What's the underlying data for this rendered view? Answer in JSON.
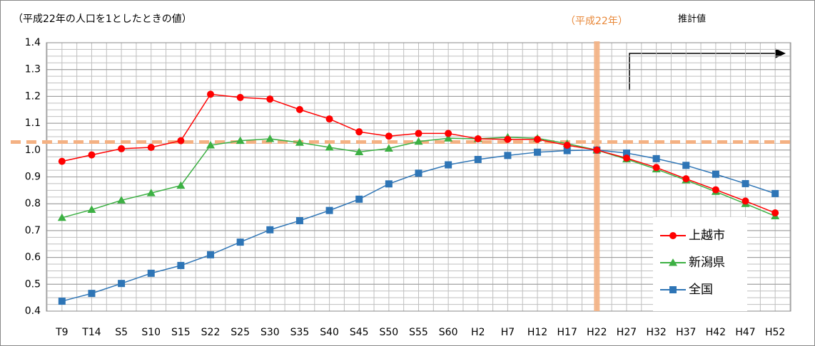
{
  "chart_data": {
    "type": "line",
    "title": "（平成22年の人口を1としたときの値）",
    "annotations": {
      "base_year": "（平成22年）",
      "projection": "推計値"
    },
    "categories": [
      "T9",
      "T14",
      "S5",
      "S10",
      "S15",
      "S22",
      "S25",
      "S30",
      "S35",
      "S40",
      "S45",
      "S50",
      "S55",
      "S60",
      "H2",
      "H7",
      "H12",
      "H17",
      "H22",
      "H27",
      "H32",
      "H37",
      "H42",
      "H47",
      "H52"
    ],
    "series": [
      {
        "name": "上越市",
        "color": "#ff0000",
        "marker": "circle",
        "values": [
          0.958,
          0.982,
          1.005,
          1.01,
          1.035,
          1.208,
          1.196,
          1.19,
          1.151,
          1.116,
          1.068,
          1.052,
          1.062,
          1.062,
          1.042,
          1.04,
          1.04,
          1.018,
          1.0,
          0.97,
          0.935,
          0.893,
          0.852,
          0.81,
          0.766
        ]
      },
      {
        "name": "新潟県",
        "color": "#3cb043",
        "marker": "triangle",
        "values": [
          0.748,
          0.778,
          0.813,
          0.84,
          0.868,
          1.018,
          1.035,
          1.042,
          1.028,
          1.01,
          0.993,
          1.006,
          1.032,
          1.044,
          1.042,
          1.048,
          1.044,
          1.024,
          1.0,
          0.966,
          0.929,
          0.888,
          0.845,
          0.8,
          0.754
        ]
      },
      {
        "name": "全国",
        "color": "#2e75b6",
        "marker": "square",
        "values": [
          0.437,
          0.466,
          0.503,
          0.541,
          0.57,
          0.61,
          0.657,
          0.703,
          0.737,
          0.775,
          0.817,
          0.874,
          0.914,
          0.945,
          0.965,
          0.98,
          0.992,
          0.998,
          1.0,
          0.989,
          0.968,
          0.943,
          0.91,
          0.875,
          0.838
        ]
      }
    ],
    "ylim": [
      0.4,
      1.4
    ],
    "yticks": [
      0.4,
      0.5,
      0.6,
      0.7,
      0.8,
      0.9,
      {
        "value": 1,
        "label": "1.0"
      },
      1.1,
      1.2,
      1.3,
      1.4
    ],
    "grid": true,
    "reference_line": 1.03,
    "highlight_category": "H22",
    "legend": "lower right"
  }
}
